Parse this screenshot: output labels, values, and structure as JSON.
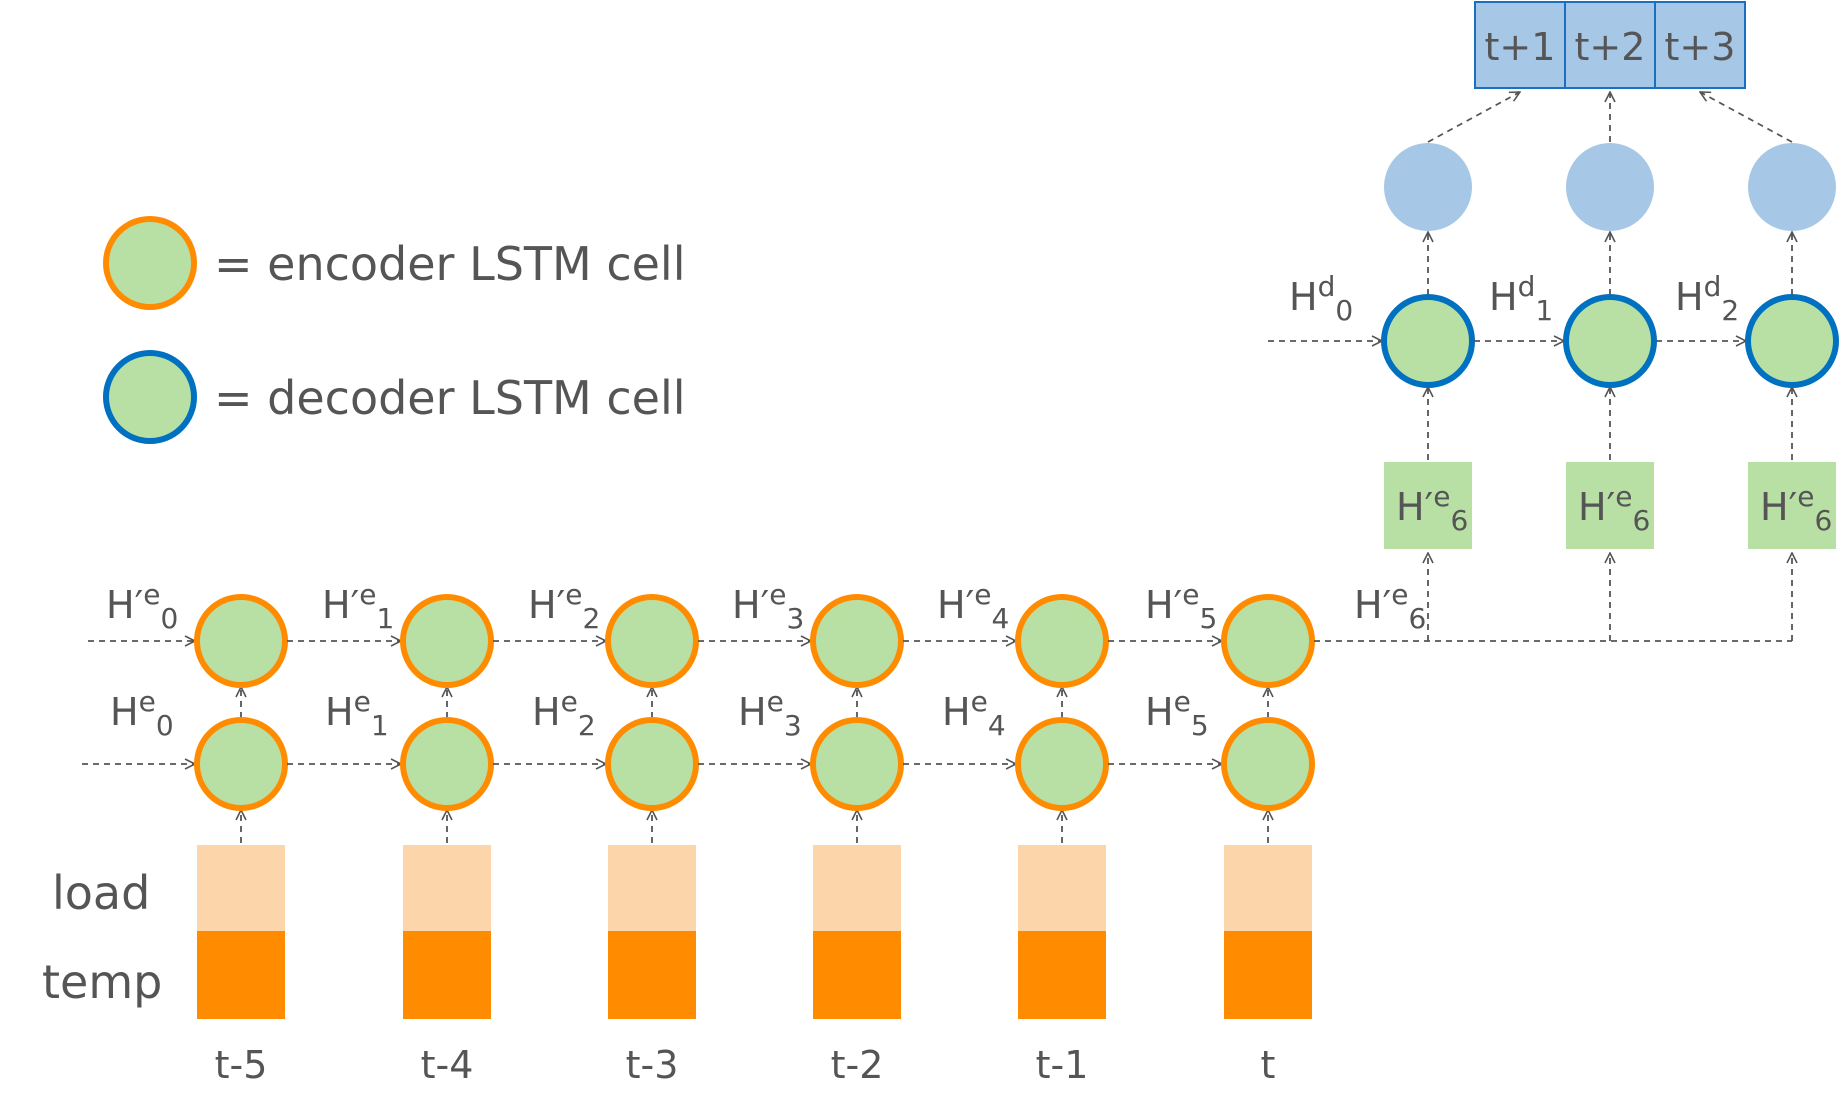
{
  "legend": {
    "encoder_text": "= encoder LSTM cell",
    "decoder_text": "= decoder LSTM cell"
  },
  "row_labels": {
    "load": "load",
    "temp": "temp"
  },
  "timesteps": [
    "t-5",
    "t-4",
    "t-3",
    "t-2",
    "t-1",
    "t"
  ],
  "encoder_layer1_states": [
    {
      "base": "H",
      "sup": "e",
      "sub": "0"
    },
    {
      "base": "H",
      "sup": "e",
      "sub": "1"
    },
    {
      "base": "H",
      "sup": "e",
      "sub": "2"
    },
    {
      "base": "H",
      "sup": "e",
      "sub": "3"
    },
    {
      "base": "H",
      "sup": "e",
      "sub": "4"
    },
    {
      "base": "H",
      "sup": "e",
      "sub": "5"
    }
  ],
  "encoder_layer2_states": [
    {
      "base": "H′",
      "sup": "e",
      "sub": "0"
    },
    {
      "base": "H′",
      "sup": "e",
      "sub": "1"
    },
    {
      "base": "H′",
      "sup": "e",
      "sub": "2"
    },
    {
      "base": "H′",
      "sup": "e",
      "sub": "3"
    },
    {
      "base": "H′",
      "sup": "e",
      "sub": "4"
    },
    {
      "base": "H′",
      "sup": "e",
      "sub": "5"
    },
    {
      "base": "H′",
      "sup": "e",
      "sub": "6"
    }
  ],
  "decoder_states": [
    {
      "base": "H",
      "sup": "d",
      "sub": "0"
    },
    {
      "base": "H",
      "sup": "d",
      "sub": "1"
    },
    {
      "base": "H",
      "sup": "d",
      "sub": "2"
    }
  ],
  "decoder_inputs": [
    {
      "base": "H′",
      "sup": "e",
      "sub": "6"
    },
    {
      "base": "H′",
      "sup": "e",
      "sub": "6"
    },
    {
      "base": "H′",
      "sup": "e",
      "sub": "6"
    }
  ],
  "outputs": [
    "t+1",
    "t+2",
    "t+3"
  ],
  "colors": {
    "encoder_border": "#ff8c00",
    "decoder_border": "#0070c0",
    "cell_fill": "#b8e0a4",
    "load_fill": "#fdd5ab",
    "temp_fill": "#ff8c00",
    "output_fill": "#a6c8e6"
  }
}
